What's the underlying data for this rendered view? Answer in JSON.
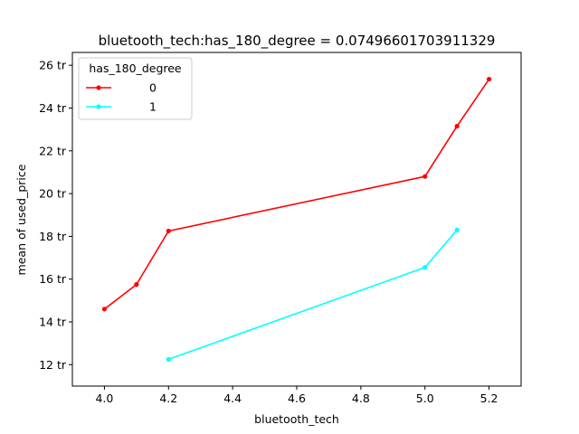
{
  "chart_data": {
    "type": "line",
    "title": "bluetooth_tech:has_180_degree = 0.07496601703911329",
    "xlabel": "bluetooth_tech",
    "ylabel": "mean of used_price",
    "xlim": [
      3.9,
      5.3
    ],
    "ylim": [
      11.0,
      26.6
    ],
    "x_ticks": [
      4.0,
      4.2,
      4.4,
      4.6,
      4.8,
      5.0,
      5.2
    ],
    "x_tick_labels": [
      "4.0",
      "4.2",
      "4.4",
      "4.6",
      "4.8",
      "5.0",
      "5.2"
    ],
    "y_ticks": [
      12,
      14,
      16,
      18,
      20,
      22,
      24,
      26
    ],
    "y_tick_labels": [
      "12 tr",
      "14 tr",
      "16 tr",
      "18 tr",
      "20 tr",
      "22 tr",
      "24 tr",
      "26 tr"
    ],
    "grid": false,
    "legend": {
      "title": "has_180_degree",
      "placement": "top-left"
    },
    "series": [
      {
        "name": "0",
        "color": "#ff0000",
        "x": [
          4.0,
          4.1,
          4.2,
          5.0,
          5.1,
          5.2
        ],
        "y": [
          14.6,
          15.75,
          18.25,
          20.8,
          23.15,
          25.35
        ]
      },
      {
        "name": "1",
        "color": "#00ffff",
        "x": [
          4.2,
          5.0,
          5.1
        ],
        "y": [
          12.25,
          16.55,
          18.3
        ]
      }
    ]
  }
}
